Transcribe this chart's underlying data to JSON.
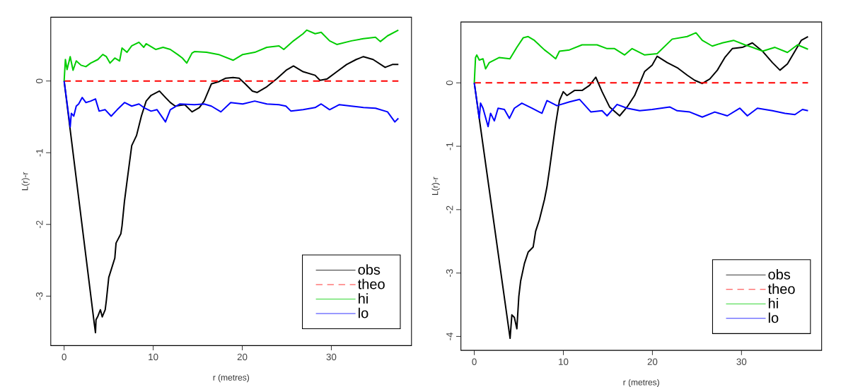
{
  "chart_data": [
    {
      "type": "line",
      "xlabel": "r (metres)",
      "ylabel": "L(r)-r",
      "xlim": [
        -1.5,
        39
      ],
      "ylim": [
        -3.69,
        0.89
      ],
      "xticks": [
        0,
        10,
        20,
        30
      ],
      "yticks": [
        -3,
        -2,
        -1,
        0
      ],
      "legend": "bottom right",
      "series": [
        {
          "name": "obs",
          "color": "#000000",
          "x": [
            0,
            3.4,
            3.52,
            3.58,
            3.79,
            4.07,
            4.28,
            4.61,
            4.74,
            5.01,
            5.69,
            5.83,
            6.37,
            6.5,
            6.77,
            7.05,
            7.59,
            8.13,
            8.67,
            9.21,
            9.76,
            10.7,
            11.38,
            11.92,
            12.47,
            13.55,
            14.36,
            15.18,
            15.72,
            16.53,
            17.34,
            18.16,
            18.97,
            19.65,
            20.33,
            21.14,
            21.68,
            22.76,
            23.85,
            24.93,
            25.75,
            26.83,
            28.18,
            28.73,
            29.54,
            30.62,
            31.71,
            32.79,
            33.6,
            34.69,
            36.04,
            36.86,
            37.53
          ],
          "values": [
            0,
            -3.4,
            -3.51,
            -3.33,
            -3.28,
            -3.19,
            -3.29,
            -3.19,
            -3.06,
            -2.74,
            -2.47,
            -2.26,
            -2.13,
            -2.02,
            -1.68,
            -1.41,
            -0.9,
            -0.76,
            -0.49,
            -0.28,
            -0.2,
            -0.14,
            -0.23,
            -0.3,
            -0.35,
            -0.33,
            -0.43,
            -0.37,
            -0.28,
            -0.04,
            -0.01,
            0.04,
            0.05,
            0.04,
            -0.04,
            -0.14,
            -0.16,
            -0.08,
            0.03,
            0.15,
            0.21,
            0.13,
            0.08,
            0.01,
            0.03,
            0.13,
            0.23,
            0.3,
            0.34,
            0.3,
            0.19,
            0.23,
            0.23
          ]
        },
        {
          "name": "theo",
          "color": "#ff0000",
          "line_style": "dashed",
          "x": [
            0,
            37.53
          ],
          "values": [
            0,
            0
          ]
        },
        {
          "name": "hi",
          "color": "#00cd00",
          "x": [
            0,
            0.14,
            0.33,
            0.68,
            1.0,
            1.36,
            1.9,
            2.44,
            2.98,
            3.79,
            4.34,
            4.74,
            5.15,
            5.69,
            6.23,
            6.5,
            7.05,
            7.59,
            8.4,
            8.94,
            9.21,
            10.3,
            11.11,
            11.92,
            12.74,
            13.28,
            13.77,
            14.36,
            14.63,
            15.99,
            17.34,
            18.97,
            20.05,
            21.41,
            22.76,
            24.12,
            24.66,
            25.75,
            26.83,
            27.24,
            28.18,
            28.86,
            29.81,
            30.62,
            32.25,
            33.6,
            34.96,
            35.5,
            36.31,
            37.53
          ],
          "values": [
            0,
            0.3,
            0.16,
            0.34,
            0.15,
            0.28,
            0.22,
            0.2,
            0.25,
            0.3,
            0.37,
            0.34,
            0.25,
            0.32,
            0.28,
            0.46,
            0.4,
            0.49,
            0.54,
            0.47,
            0.52,
            0.44,
            0.47,
            0.44,
            0.37,
            0.32,
            0.25,
            0.39,
            0.41,
            0.4,
            0.37,
            0.29,
            0.37,
            0.4,
            0.47,
            0.49,
            0.44,
            0.56,
            0.66,
            0.71,
            0.66,
            0.68,
            0.56,
            0.51,
            0.56,
            0.59,
            0.61,
            0.55,
            0.63,
            0.71
          ]
        },
        {
          "name": "lo",
          "color": "#0000ff",
          "x": [
            0,
            0.68,
            0.81,
            1.08,
            1.36,
            1.63,
            2.03,
            2.44,
            2.98,
            3.52,
            3.93,
            4.61,
            5.28,
            5.96,
            6.78,
            7.59,
            8.4,
            8.94,
            9.76,
            10.43,
            11.38,
            11.92,
            13.0,
            14.63,
            15.72,
            16.53,
            17.6,
            18.7,
            20.05,
            21.4,
            22.76,
            24.12,
            24.9,
            25.47,
            26.83,
            28.18,
            28.86,
            29.81,
            30.9,
            32.25,
            33.6,
            34.96,
            36.31,
            37.13,
            37.53
          ],
          "values": [
            0,
            -0.64,
            -0.45,
            -0.49,
            -0.35,
            -0.32,
            -0.23,
            -0.3,
            -0.28,
            -0.25,
            -0.42,
            -0.4,
            -0.49,
            -0.4,
            -0.3,
            -0.35,
            -0.32,
            -0.37,
            -0.42,
            -0.4,
            -0.57,
            -0.4,
            -0.32,
            -0.33,
            -0.32,
            -0.35,
            -0.43,
            -0.3,
            -0.32,
            -0.28,
            -0.32,
            -0.33,
            -0.35,
            -0.42,
            -0.4,
            -0.37,
            -0.32,
            -0.4,
            -0.33,
            -0.35,
            -0.37,
            -0.38,
            -0.43,
            -0.57,
            -0.52
          ]
        }
      ]
    },
    {
      "type": "line",
      "xlabel": "r (metres)",
      "ylabel": "L(r)-r",
      "xlim": [
        -1.5,
        39
      ],
      "ylim": [
        -4.22,
        0.96
      ],
      "xticks": [
        0,
        10,
        20,
        30
      ],
      "yticks": [
        -4,
        -3,
        -2,
        -1,
        0
      ],
      "legend": "bottom right",
      "series": [
        {
          "name": "obs",
          "color": "#000000",
          "x": [
            0,
            4.02,
            4.22,
            4.5,
            4.78,
            5.0,
            5.2,
            5.63,
            6.05,
            6.61,
            6.89,
            7.31,
            7.88,
            8.16,
            8.44,
            9.14,
            9.56,
            9.99,
            10.41,
            11.25,
            12.1,
            12.94,
            13.64,
            14.35,
            15.19,
            16.32,
            17.16,
            18.0,
            19.13,
            19.97,
            20.53,
            21.66,
            22.78,
            23.91,
            24.75,
            25.6,
            26.44,
            27.29,
            28.13,
            28.97,
            30.1,
            31.22,
            32.35,
            33.47,
            34.32,
            35.16,
            36.0,
            36.71,
            37.47
          ],
          "values": [
            0,
            -4.03,
            -3.66,
            -3.7,
            -3.88,
            -3.37,
            -3.13,
            -2.85,
            -2.67,
            -2.59,
            -2.34,
            -2.16,
            -1.84,
            -1.64,
            -1.37,
            -0.65,
            -0.28,
            -0.14,
            -0.2,
            -0.12,
            -0.12,
            -0.04,
            0.09,
            -0.14,
            -0.38,
            -0.52,
            -0.38,
            -0.2,
            0.18,
            0.28,
            0.42,
            0.32,
            0.24,
            0.12,
            0.04,
            -0.01,
            0.06,
            0.2,
            0.4,
            0.54,
            0.56,
            0.63,
            0.5,
            0.32,
            0.2,
            0.3,
            0.5,
            0.67,
            0.73
          ]
        },
        {
          "name": "theo",
          "color": "#ff0000",
          "line_style": "dashed",
          "x": [
            0,
            37.47
          ],
          "values": [
            0,
            0
          ]
        },
        {
          "name": "hi",
          "color": "#00cd00",
          "x": [
            0,
            0.14,
            0.28,
            0.56,
            0.98,
            1.27,
            1.69,
            2.81,
            4.0,
            4.78,
            5.49,
            6.05,
            6.75,
            7.88,
            8.44,
            9.14,
            9.56,
            10.69,
            12.1,
            13.78,
            14.91,
            15.75,
            16.88,
            17.72,
            19.13,
            20.53,
            22.22,
            23.9,
            24.89,
            25.6,
            26.72,
            27.85,
            29.11,
            30.38,
            31.22,
            32.35,
            33.76,
            35.16,
            36.29,
            37.47
          ],
          "values": [
            0,
            0.4,
            0.44,
            0.36,
            0.38,
            0.22,
            0.32,
            0.4,
            0.38,
            0.56,
            0.71,
            0.73,
            0.67,
            0.52,
            0.46,
            0.38,
            0.5,
            0.52,
            0.6,
            0.6,
            0.54,
            0.54,
            0.44,
            0.54,
            0.44,
            0.46,
            0.69,
            0.73,
            0.79,
            0.67,
            0.58,
            0.63,
            0.67,
            0.6,
            0.56,
            0.5,
            0.56,
            0.48,
            0.6,
            0.53
          ]
        },
        {
          "name": "lo",
          "color": "#0000ff",
          "x": [
            0,
            0.56,
            0.7,
            0.98,
            1.55,
            1.83,
            2.25,
            2.67,
            3.38,
            3.94,
            4.5,
            5.34,
            6.47,
            7.6,
            8.16,
            9.28,
            10.69,
            11.81,
            13.1,
            14.35,
            14.91,
            16.03,
            17.16,
            18.57,
            19.97,
            21.94,
            22.78,
            24.19,
            25.6,
            27.0,
            28.41,
            29.82,
            30.66,
            31.79,
            33.47,
            34.88,
            36.0,
            36.85,
            37.47
          ],
          "values": [
            0,
            -0.56,
            -0.32,
            -0.4,
            -0.69,
            -0.48,
            -0.6,
            -0.4,
            -0.42,
            -0.56,
            -0.4,
            -0.32,
            -0.4,
            -0.48,
            -0.28,
            -0.36,
            -0.3,
            -0.26,
            -0.46,
            -0.44,
            -0.52,
            -0.34,
            -0.4,
            -0.44,
            -0.42,
            -0.38,
            -0.44,
            -0.46,
            -0.54,
            -0.46,
            -0.52,
            -0.4,
            -0.52,
            -0.4,
            -0.44,
            -0.48,
            -0.5,
            -0.42,
            -0.44
          ]
        }
      ]
    }
  ]
}
